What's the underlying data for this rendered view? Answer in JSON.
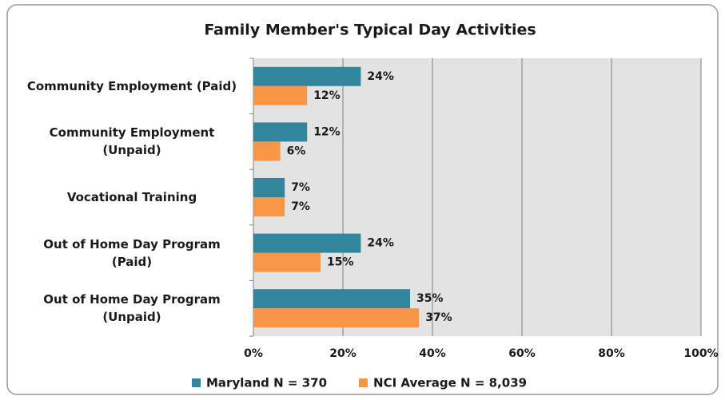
{
  "chart_data": {
    "type": "bar",
    "orientation": "horizontal",
    "title": "Family Member's Typical Day Activities",
    "categories": [
      "Community Employment (Paid)",
      "Community Employment (Unpaid)",
      "Vocational Training",
      "Out of Home Day Program (Paid)",
      "Out of Home Day Program (Unpaid)"
    ],
    "series": [
      {
        "name": "Maryland N = 370",
        "color": "#31859c",
        "values": [
          24,
          12,
          7,
          24,
          35
        ],
        "value_labels": [
          "24%",
          "12%",
          "7%",
          "24%",
          "35%"
        ]
      },
      {
        "name": "NCI Average N = 8,039",
        "color": "#f79646",
        "values": [
          12,
          6,
          7,
          15,
          37
        ],
        "value_labels": [
          "12%",
          "6%",
          "7%",
          "15%",
          "37%"
        ]
      }
    ],
    "xlim": [
      0,
      100
    ],
    "xticks": [
      {
        "value": 0,
        "label": "0%"
      },
      {
        "value": 20,
        "label": "20%"
      },
      {
        "value": 40,
        "label": "40%"
      },
      {
        "value": 60,
        "label": "60%"
      },
      {
        "value": 80,
        "label": "80%"
      },
      {
        "value": 100,
        "label": "100%"
      }
    ],
    "grid": true,
    "legend": "bottom"
  }
}
